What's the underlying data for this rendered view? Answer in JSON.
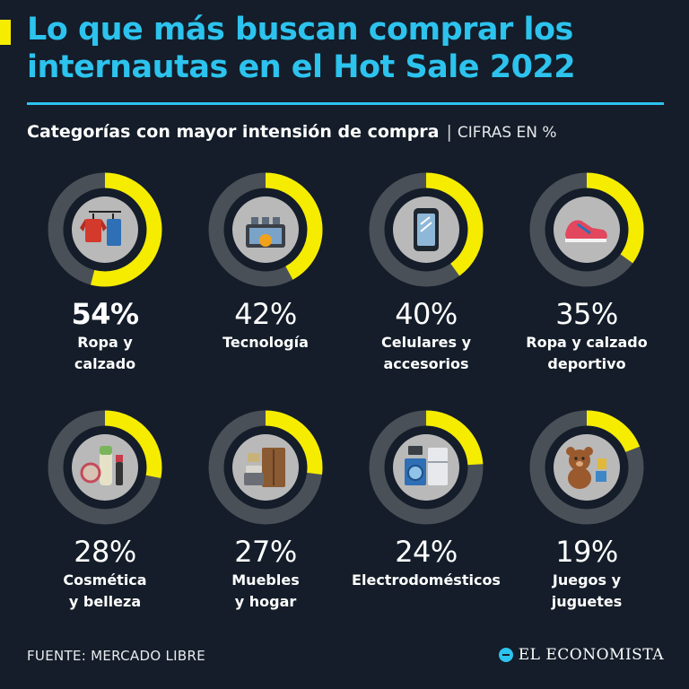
{
  "header": {
    "title_line1": "Lo que más buscan comprar los",
    "title_line2": "internautas en el Hot Sale 2022",
    "subtitle": "Categorías con mayor intensión de compra",
    "separator": "|",
    "units": "CIFRAS EN %"
  },
  "colors": {
    "background": "#141d29",
    "title": "#2cc3ee",
    "accent": "#f5ec00",
    "ring_track": "#4a5057",
    "icon_circle": "#b9b9b9"
  },
  "chart_data": {
    "type": "pie",
    "title": "Categorías con mayor intensión de compra",
    "units": "%",
    "categories": [
      "Ropa y calzado",
      "Tecnología",
      "Celulares y accesorios",
      "Ropa y calzado deportivo",
      "Cosmética y belleza",
      "Muebles y hogar",
      "Electrodomésticos",
      "Juegos y juguetes"
    ],
    "values": [
      54,
      42,
      40,
      35,
      28,
      27,
      24,
      19
    ],
    "items": [
      {
        "value_label": "54%",
        "label_lines": [
          "Ropa y",
          "calzado"
        ],
        "icon": "clothes-icon",
        "highlight": true
      },
      {
        "value_label": "42%",
        "label_lines": [
          "Tecnología"
        ],
        "icon": "technology-icon",
        "highlight": false
      },
      {
        "value_label": "40%",
        "label_lines": [
          "Celulares y",
          "accesorios"
        ],
        "icon": "smartphone-icon",
        "highlight": false
      },
      {
        "value_label": "35%",
        "label_lines": [
          "Ropa y calzado",
          "deportivo"
        ],
        "icon": "sneaker-icon",
        "highlight": false
      },
      {
        "value_label": "28%",
        "label_lines": [
          "Cosmética",
          "y belleza"
        ],
        "icon": "cosmetics-icon",
        "highlight": false
      },
      {
        "value_label": "27%",
        "label_lines": [
          "Muebles",
          "y hogar"
        ],
        "icon": "furniture-icon",
        "highlight": false
      },
      {
        "value_label": "24%",
        "label_lines": [
          "Electrodomésticos"
        ],
        "icon": "appliances-icon",
        "highlight": false
      },
      {
        "value_label": "19%",
        "label_lines": [
          "Juegos y",
          "juguetes"
        ],
        "icon": "teddy-bear-icon",
        "highlight": false
      }
    ]
  },
  "footer": {
    "source": "FUENTE: MERCADO LIBRE",
    "brand": "EL ECONOMISTA",
    "brand_icon": "el-economista-logo-icon"
  }
}
